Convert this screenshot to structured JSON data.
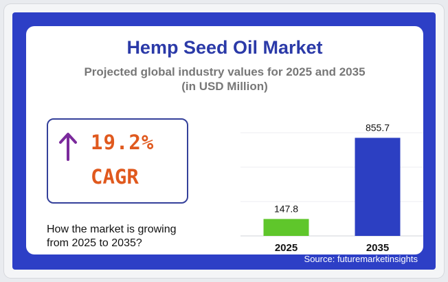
{
  "header": {
    "title": "Hemp Seed Oil Market",
    "subtitle_line1": "Projected global industry values for 2025 and 2035",
    "subtitle_line2": "(in USD Million)"
  },
  "cagr": {
    "value": "19.2%",
    "label": "CAGR",
    "icon": "arrow-up-icon",
    "arrow_color": "#7b2a9c"
  },
  "question": {
    "line1": "How the market is growing",
    "line2": "from 2025 to 2035?"
  },
  "source": "Source: futuremarketinsights",
  "colors": {
    "panel": "#2d3fc6",
    "title": "#2b3aa8",
    "accent": "#e0591e",
    "bar_2025": "#5fc62b",
    "bar_2035": "#2c3fc2"
  },
  "chart_data": {
    "type": "bar",
    "categories": [
      "2025",
      "2035"
    ],
    "values": [
      147.8,
      855.7
    ],
    "value_labels": [
      "147.8",
      "855.7"
    ],
    "colors": [
      "#5fc62b",
      "#2c3fc2"
    ],
    "ylim": [
      0,
      900
    ],
    "grid": true
  }
}
